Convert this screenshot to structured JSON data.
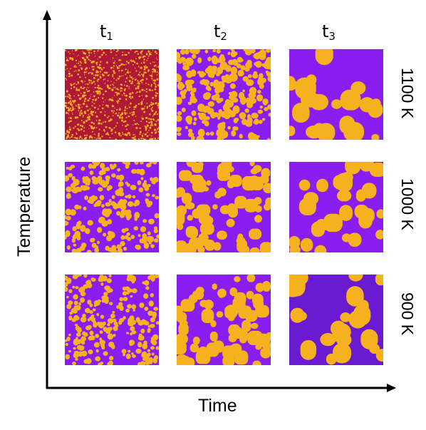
{
  "axes": {
    "x_label": "Time",
    "y_label": "Temperature"
  },
  "columns": [
    {
      "base": "t",
      "sub": "1"
    },
    {
      "base": "t",
      "sub": "2"
    },
    {
      "base": "t",
      "sub": "3"
    }
  ],
  "rows": [
    {
      "label": "1100 K"
    },
    {
      "label": "1000 K"
    },
    {
      "label": "900 K"
    }
  ],
  "colors": {
    "matrix_purple": "#8a1ef0",
    "matrix_red": "#b01838",
    "precipitate_yellow": "#f5b21e",
    "matrix_dark": "#6a1ad0"
  }
}
